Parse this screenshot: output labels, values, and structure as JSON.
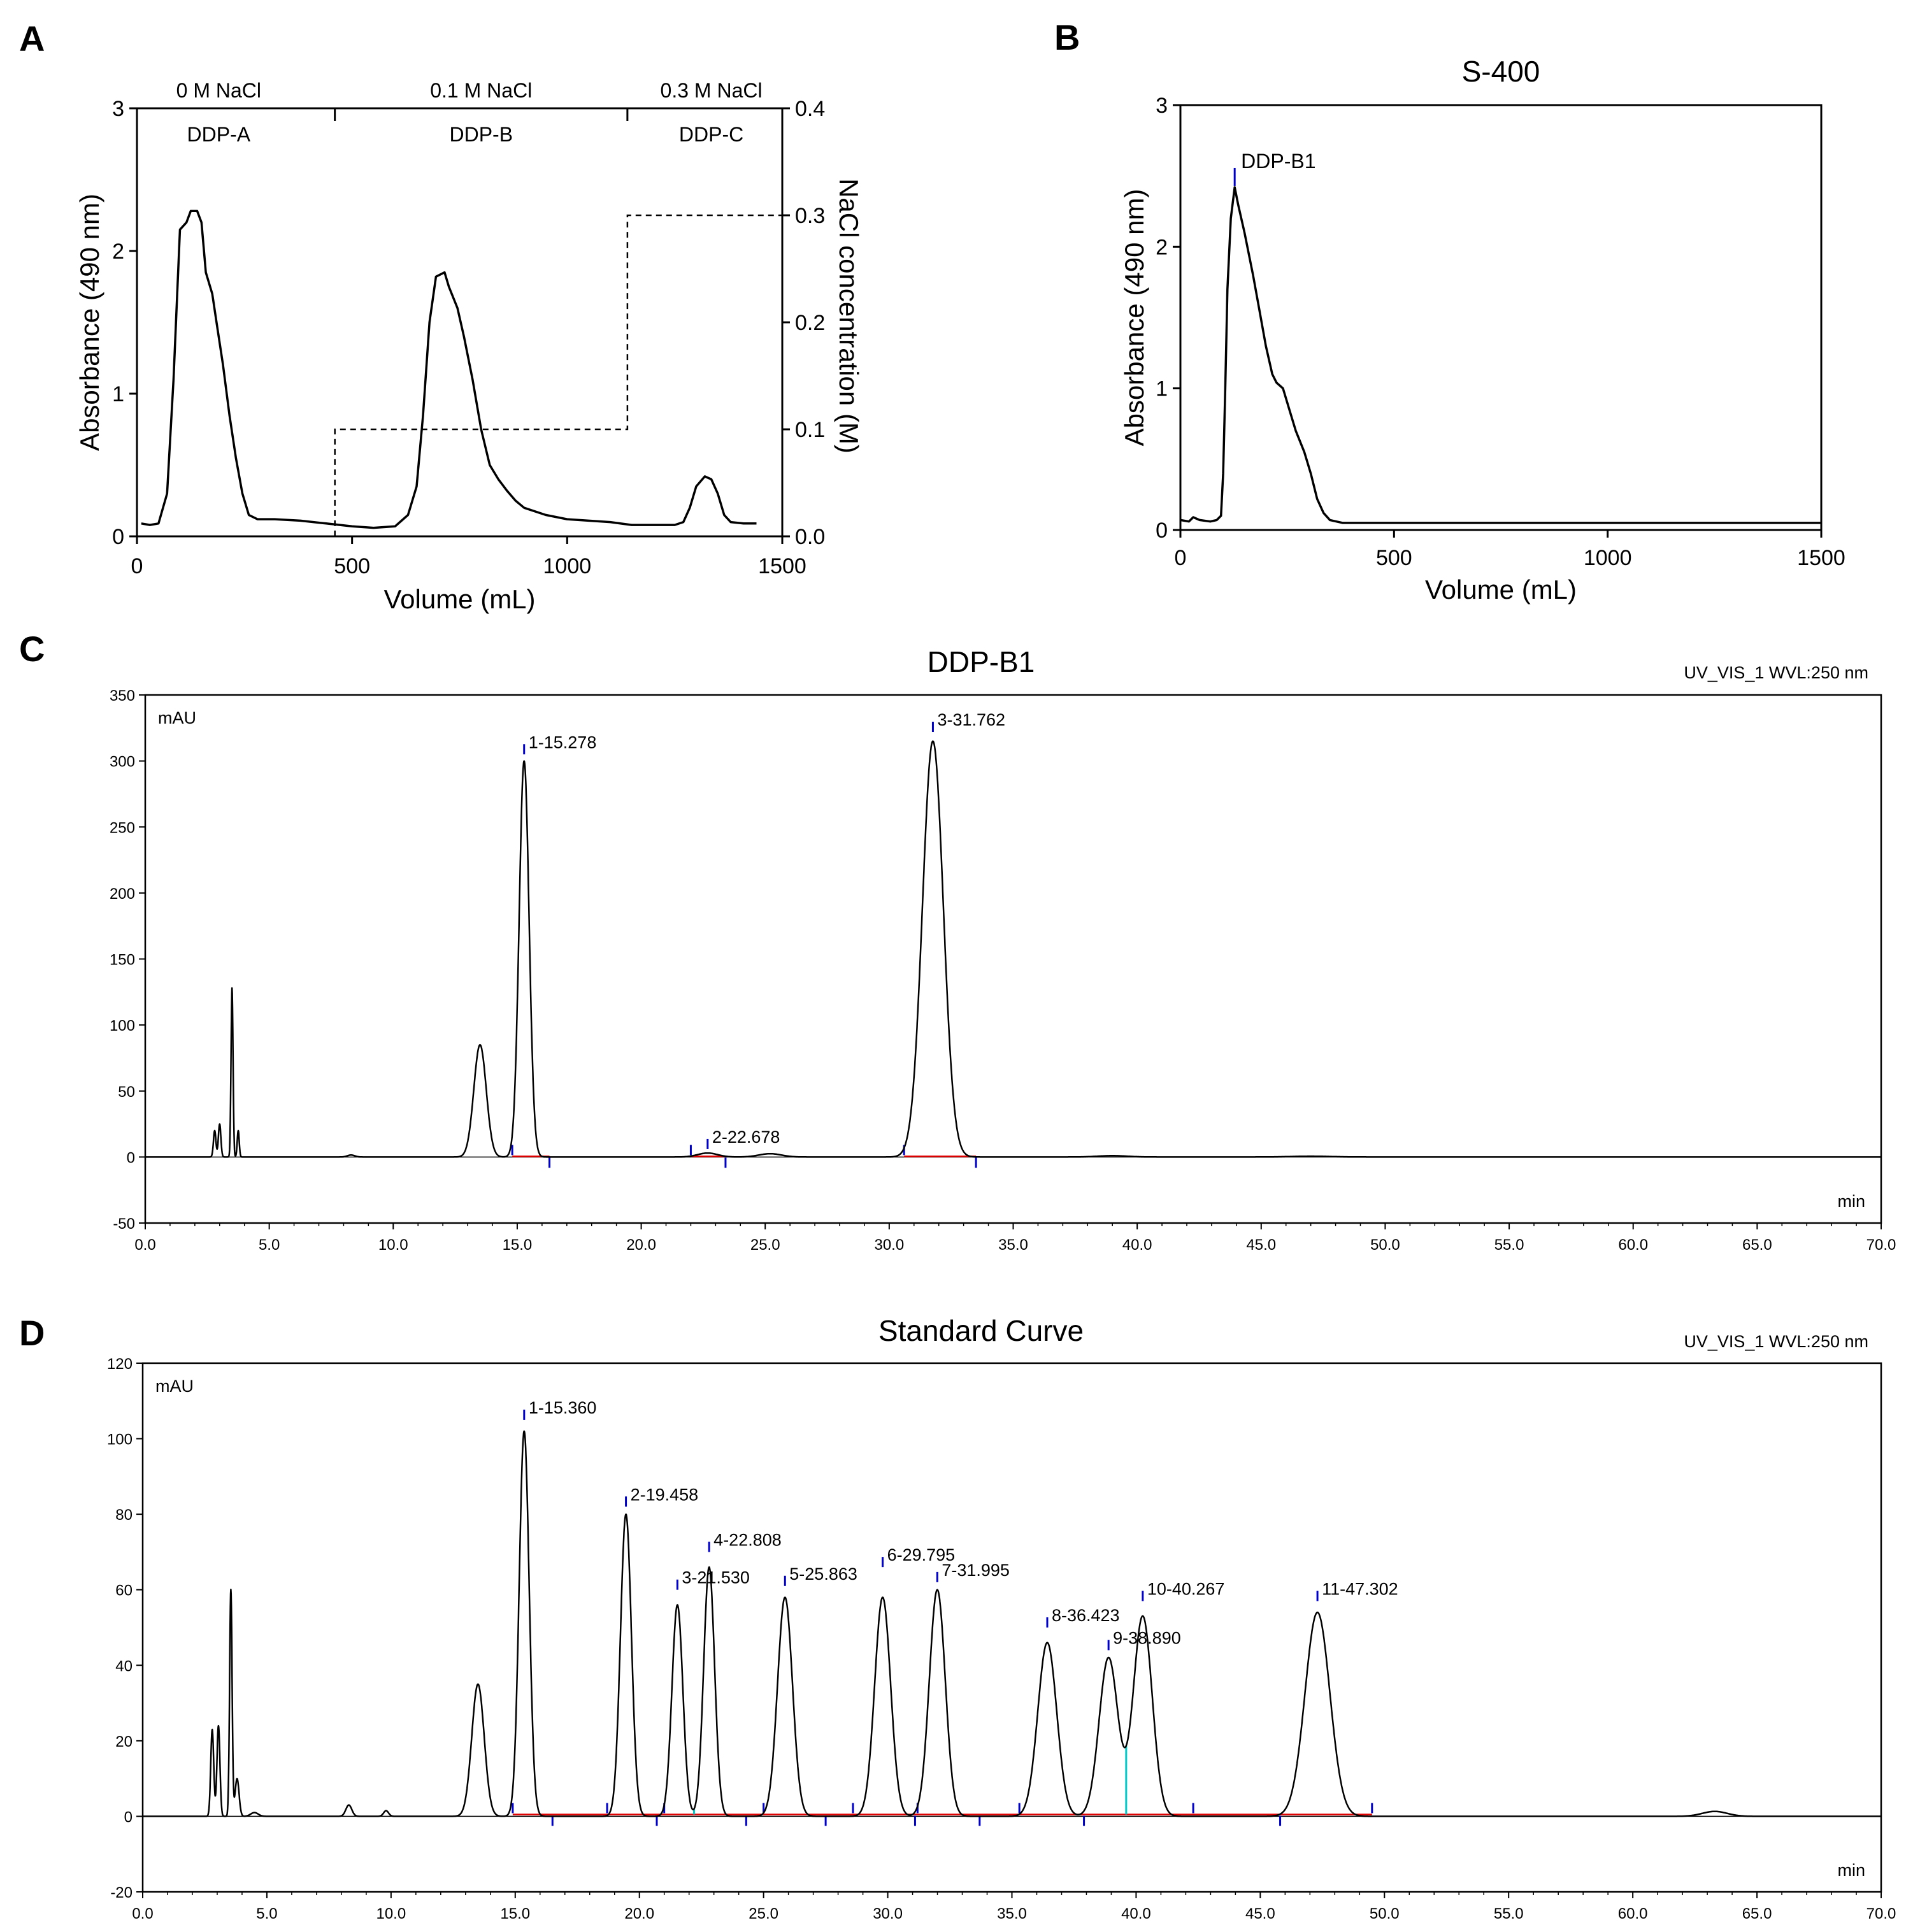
{
  "chart_data": [
    {
      "id": "A",
      "panel_label": "A",
      "type": "line",
      "xlabel": "Volume (mL)",
      "ylabel": "Absorbance (490 nm)",
      "y2label": "NaCl concentration (M)",
      "xlim": [
        0,
        1500
      ],
      "ylim": [
        0,
        3
      ],
      "y2lim": [
        0,
        0.4
      ],
      "xticks": [
        "0",
        "500",
        "1000",
        "1500"
      ],
      "yticks": [
        "0",
        "1",
        "2",
        "3"
      ],
      "y2ticks": [
        "0.0",
        "0.1",
        "0.2",
        "0.3",
        "0.4"
      ],
      "salt_labels": [
        "0 M NaCl",
        "0.1 M NaCl",
        "0.3 M NaCl"
      ],
      "fraction_labels": [
        "DDP-A",
        "DDP-B",
        "DDP-C"
      ],
      "section_dividers_x": [
        460,
        1140
      ],
      "series": [
        {
          "name": "Absorbance",
          "style": "solid",
          "points": [
            [
              10,
              0.09
            ],
            [
              30,
              0.08
            ],
            [
              50,
              0.09
            ],
            [
              70,
              0.3
            ],
            [
              85,
              1.1
            ],
            [
              100,
              2.15
            ],
            [
              115,
              2.2
            ],
            [
              125,
              2.28
            ],
            [
              140,
              2.28
            ],
            [
              150,
              2.2
            ],
            [
              160,
              1.85
            ],
            [
              175,
              1.7
            ],
            [
              185,
              1.5
            ],
            [
              200,
              1.2
            ],
            [
              215,
              0.85
            ],
            [
              230,
              0.55
            ],
            [
              245,
              0.3
            ],
            [
              260,
              0.15
            ],
            [
              280,
              0.12
            ],
            [
              320,
              0.12
            ],
            [
              380,
              0.11
            ],
            [
              440,
              0.09
            ],
            [
              500,
              0.07
            ],
            [
              550,
              0.06
            ],
            [
              600,
              0.07
            ],
            [
              630,
              0.15
            ],
            [
              650,
              0.35
            ],
            [
              665,
              0.85
            ],
            [
              680,
              1.5
            ],
            [
              695,
              1.82
            ],
            [
              715,
              1.85
            ],
            [
              725,
              1.75
            ],
            [
              745,
              1.6
            ],
            [
              760,
              1.4
            ],
            [
              780,
              1.1
            ],
            [
              800,
              0.75
            ],
            [
              820,
              0.5
            ],
            [
              840,
              0.4
            ],
            [
              860,
              0.32
            ],
            [
              880,
              0.25
            ],
            [
              900,
              0.2
            ],
            [
              950,
              0.15
            ],
            [
              1000,
              0.12
            ],
            [
              1050,
              0.11
            ],
            [
              1100,
              0.1
            ],
            [
              1150,
              0.08
            ],
            [
              1200,
              0.08
            ],
            [
              1250,
              0.08
            ],
            [
              1270,
              0.1
            ],
            [
              1285,
              0.2
            ],
            [
              1300,
              0.35
            ],
            [
              1320,
              0.42
            ],
            [
              1335,
              0.4
            ],
            [
              1350,
              0.3
            ],
            [
              1365,
              0.15
            ],
            [
              1380,
              0.1
            ],
            [
              1410,
              0.09
            ],
            [
              1440,
              0.09
            ]
          ]
        },
        {
          "name": "NaCl gradient",
          "style": "dashed",
          "axis": "y2",
          "points": [
            [
              10,
              0
            ],
            [
              460,
              0
            ],
            [
              460,
              0.1
            ],
            [
              1130,
              0.1
            ],
            [
              1140,
              0.1
            ],
            [
              1140,
              0.3
            ],
            [
              1500,
              0.3
            ]
          ]
        }
      ]
    },
    {
      "id": "B",
      "panel_label": "B",
      "type": "line",
      "title": "S-400",
      "xlabel": "Volume (mL)",
      "ylabel": "Absorbance (490 nm)",
      "xlim": [
        0,
        1500
      ],
      "ylim": [
        0,
        3
      ],
      "xticks": [
        "0",
        "500",
        "1000",
        "1500"
      ],
      "yticks": [
        "0",
        "1",
        "2",
        "3"
      ],
      "annotations": [
        {
          "text": "DDP-B1",
          "x": 127,
          "y": 2.42
        }
      ],
      "series": [
        {
          "name": "Absorbance",
          "points": [
            [
              0,
              0.07
            ],
            [
              20,
              0.06
            ],
            [
              30,
              0.09
            ],
            [
              45,
              0.07
            ],
            [
              70,
              0.06
            ],
            [
              85,
              0.07
            ],
            [
              95,
              0.1
            ],
            [
              100,
              0.4
            ],
            [
              105,
              1.0
            ],
            [
              110,
              1.7
            ],
            [
              118,
              2.2
            ],
            [
              127,
              2.42
            ],
            [
              135,
              2.3
            ],
            [
              150,
              2.1
            ],
            [
              170,
              1.8
            ],
            [
              185,
              1.55
            ],
            [
              200,
              1.3
            ],
            [
              215,
              1.1
            ],
            [
              225,
              1.04
            ],
            [
              240,
              1.0
            ],
            [
              255,
              0.85
            ],
            [
              270,
              0.7
            ],
            [
              290,
              0.55
            ],
            [
              305,
              0.4
            ],
            [
              320,
              0.22
            ],
            [
              335,
              0.12
            ],
            [
              350,
              0.07
            ],
            [
              380,
              0.05
            ],
            [
              500,
              0.05
            ],
            [
              1000,
              0.05
            ],
            [
              1500,
              0.05
            ]
          ]
        }
      ]
    },
    {
      "id": "C",
      "panel_label": "C",
      "type": "line",
      "title": "DDP-B1",
      "detector_label": "UV_VIS_1 WVL:250 nm",
      "yunit": "mAU",
      "xunit": "min",
      "xlim": [
        0,
        70
      ],
      "ylim": [
        -50,
        350
      ],
      "xticks": [
        "0.0",
        "5.0",
        "10.0",
        "15.0",
        "20.0",
        "25.0",
        "30.0",
        "35.0",
        "40.0",
        "45.0",
        "50.0",
        "55.0",
        "60.0",
        "65.0",
        "70.0"
      ],
      "yticks": [
        "-50",
        "0",
        "50",
        "100",
        "150",
        "200",
        "250",
        "300",
        "350"
      ],
      "baseline_noise": [
        [
          8.3,
          1.5,
          0.15
        ],
        [
          25.2,
          2.5,
          0.45
        ],
        [
          39,
          1.0,
          0.6
        ],
        [
          47,
          0.6,
          0.8
        ]
      ],
      "peaks": [
        [
          2.8,
          20,
          0.05
        ],
        [
          3.0,
          25,
          0.05
        ],
        [
          3.5,
          128,
          0.04
        ],
        [
          3.75,
          20,
          0.04
        ],
        [
          13.5,
          85,
          0.25
        ],
        [
          15.278,
          300,
          0.2
        ],
        [
          22.678,
          3,
          0.4
        ],
        [
          31.762,
          315,
          0.42
        ]
      ],
      "peak_labels": [
        {
          "text": "1-15.278",
          "rt": 15.278,
          "y": 305
        },
        {
          "text": "2-22.678",
          "rt": 22.678,
          "y": 6
        },
        {
          "text": "3-31.762",
          "rt": 31.762,
          "y": 322
        }
      ],
      "integration_marks": [
        14.8,
        16.3,
        22.0,
        23.4,
        30.6,
        33.5
      ],
      "integration_baselines": [
        [
          14.8,
          16.3
        ],
        [
          22.0,
          23.4
        ],
        [
          30.6,
          33.5
        ]
      ]
    },
    {
      "id": "D",
      "panel_label": "D",
      "type": "line",
      "title": "Standard Curve",
      "detector_label": "UV_VIS_1 WVL:250 nm",
      "yunit": "mAU",
      "xunit": "min",
      "xlim": [
        0,
        70
      ],
      "ylim": [
        -20,
        120
      ],
      "xticks": [
        "0.0",
        "5.0",
        "10.0",
        "15.0",
        "20.0",
        "25.0",
        "30.0",
        "35.0",
        "40.0",
        "45.0",
        "50.0",
        "55.0",
        "60.0",
        "65.0",
        "70.0"
      ],
      "yticks": [
        "-20",
        "0",
        "20",
        "40",
        "60",
        "80",
        "100",
        "120"
      ],
      "baseline_noise": [
        [
          4.5,
          1.0,
          0.15
        ],
        [
          63.3,
          1.3,
          0.5
        ]
      ],
      "peaks": [
        [
          2.8,
          23,
          0.06
        ],
        [
          3.05,
          24,
          0.06
        ],
        [
          3.55,
          60,
          0.05
        ],
        [
          3.8,
          10,
          0.08
        ],
        [
          8.3,
          3,
          0.12
        ],
        [
          9.8,
          1.5,
          0.1
        ],
        [
          13.5,
          35,
          0.25
        ],
        [
          15.36,
          102,
          0.2
        ],
        [
          19.458,
          80,
          0.22
        ],
        [
          21.53,
          56,
          0.22
        ],
        [
          22.808,
          66,
          0.22
        ],
        [
          25.863,
          58,
          0.3
        ],
        [
          29.795,
          58,
          0.32
        ],
        [
          31.995,
          60,
          0.32
        ],
        [
          36.423,
          46,
          0.38
        ],
        [
          38.89,
          42,
          0.38
        ],
        [
          40.267,
          53,
          0.38
        ],
        [
          47.302,
          54,
          0.5
        ]
      ],
      "peak_labels": [
        {
          "text": "1-15.360",
          "rt": 15.36,
          "y": 105
        },
        {
          "text": "2-19.458",
          "rt": 19.458,
          "y": 82
        },
        {
          "text": "3-21.530",
          "rt": 21.53,
          "y": 60
        },
        {
          "text": "4-22.808",
          "rt": 22.808,
          "y": 70
        },
        {
          "text": "5-25.863",
          "rt": 25.863,
          "y": 61
        },
        {
          "text": "6-29.795",
          "rt": 29.795,
          "y": 66
        },
        {
          "text": "7-31.995",
          "rt": 31.995,
          "y": 62
        },
        {
          "text": "8-36.423",
          "rt": 36.423,
          "y": 50
        },
        {
          "text": "9-38.890",
          "rt": 38.89,
          "y": 44
        },
        {
          "text": "10-40.267",
          "rt": 40.267,
          "y": 57
        },
        {
          "text": "11-47.302",
          "rt": 47.302,
          "y": 57
        }
      ],
      "integration_marks": [
        14.9,
        16.5,
        18.7,
        20.7,
        21.0,
        24.3,
        25.0,
        27.5,
        28.6,
        31.1,
        31.2,
        33.7,
        35.3,
        37.9,
        42.3,
        45.8,
        49.5
      ],
      "integration_baselines": [
        [
          14.9,
          49.5
        ]
      ],
      "drop_lines": [
        22.2,
        39.6
      ]
    }
  ]
}
